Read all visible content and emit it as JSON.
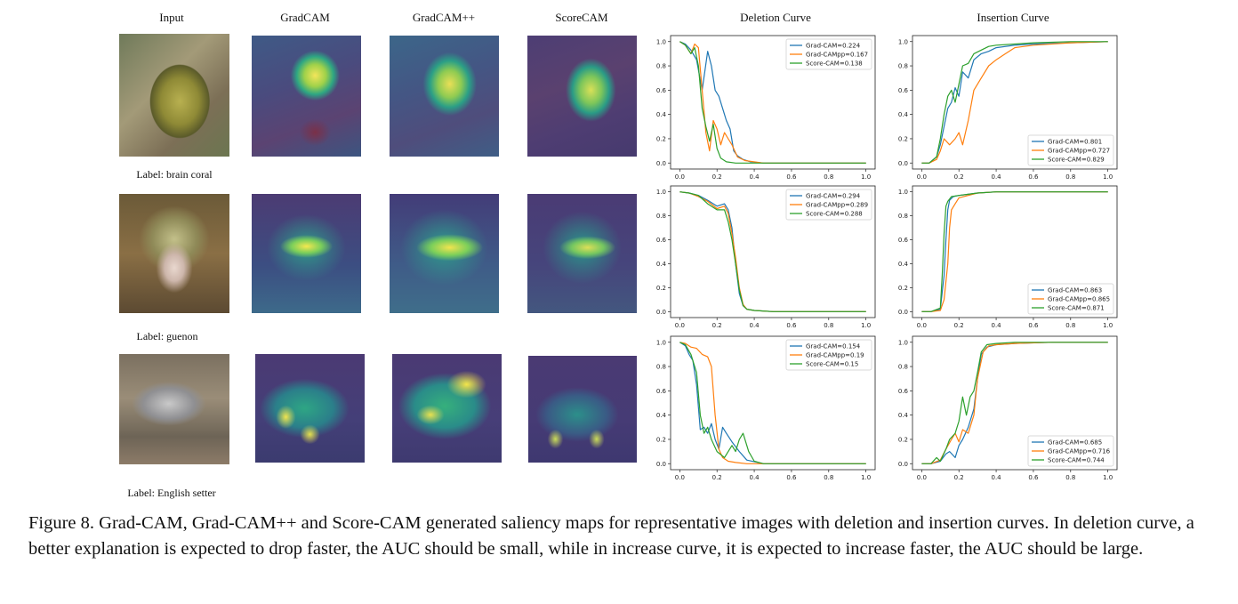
{
  "headers": {
    "input": "Input",
    "gradcam": "GradCAM",
    "gradcampp": "GradCAM++",
    "scorecam": "ScoreCAM",
    "deletion": "Deletion Curve",
    "insertion": "Insertion Curve"
  },
  "labels": [
    "Label: brain coral",
    "Label: guenon",
    "Label: English setter"
  ],
  "caption": "Figure 8. Grad-CAM, Grad-CAM++ and Score-CAM generated saliency maps for representative images with deletion and insertion curves. In deletion curve, a better explanation is expected to drop faster, the AUC should be small, while in increase curve, it is expected to increase faster, the AUC should be large.",
  "colors": {
    "gradcam": "#1f77b4",
    "gradcampp": "#ff7f0e",
    "scorecam": "#2ca02c"
  },
  "chart_data": [
    {
      "type": "line",
      "title": "Deletion Curve",
      "row": 0,
      "legend": "top-right",
      "xlim": [
        0,
        1
      ],
      "ylim": [
        0,
        1
      ],
      "xticks": [
        "0.0",
        "0.2",
        "0.4",
        "0.6",
        "0.8",
        "1.0"
      ],
      "yticks": [
        "0.0",
        "0.2",
        "0.4",
        "0.6",
        "0.8",
        "1.0"
      ],
      "series": [
        {
          "name": "Grad-CAM=0.224",
          "x": [
            0,
            0.03,
            0.06,
            0.09,
            0.12,
            0.15,
            0.17,
            0.19,
            0.21,
            0.23,
            0.25,
            0.27,
            0.29,
            0.31,
            0.34,
            0.38,
            0.45,
            0.6,
            1.0
          ],
          "y": [
            1.0,
            0.98,
            0.93,
            0.85,
            0.6,
            0.92,
            0.8,
            0.6,
            0.55,
            0.45,
            0.35,
            0.28,
            0.1,
            0.06,
            0.03,
            0.01,
            0.0,
            0.0,
            0.0
          ]
        },
        {
          "name": "Grad-CAMpp=0.167",
          "x": [
            0,
            0.03,
            0.06,
            0.08,
            0.1,
            0.12,
            0.14,
            0.16,
            0.18,
            0.2,
            0.22,
            0.24,
            0.26,
            0.28,
            0.31,
            0.35,
            0.45,
            1.0
          ],
          "y": [
            1.0,
            0.97,
            0.9,
            0.98,
            0.95,
            0.6,
            0.25,
            0.1,
            0.35,
            0.28,
            0.15,
            0.25,
            0.2,
            0.15,
            0.05,
            0.02,
            0.0,
            0.0
          ]
        },
        {
          "name": "Score-CAM=0.138",
          "x": [
            0,
            0.03,
            0.06,
            0.08,
            0.1,
            0.12,
            0.14,
            0.16,
            0.18,
            0.2,
            0.22,
            0.25,
            0.3,
            0.4,
            1.0
          ],
          "y": [
            1.0,
            0.97,
            0.9,
            0.95,
            0.8,
            0.45,
            0.3,
            0.18,
            0.32,
            0.12,
            0.04,
            0.01,
            0.0,
            0.0,
            0.0
          ]
        }
      ]
    },
    {
      "type": "line",
      "title": "Insertion Curve",
      "row": 0,
      "legend": "bottom-right",
      "xlim": [
        0,
        1
      ],
      "ylim": [
        0,
        1
      ],
      "xticks": [
        "0.0",
        "0.2",
        "0.4",
        "0.6",
        "0.8",
        "1.0"
      ],
      "yticks": [
        "0.0",
        "0.2",
        "0.4",
        "0.6",
        "0.8",
        "1.0"
      ],
      "series": [
        {
          "name": "Grad-CAM=0.801",
          "x": [
            0,
            0.04,
            0.08,
            0.1,
            0.12,
            0.14,
            0.16,
            0.18,
            0.2,
            0.22,
            0.25,
            0.28,
            0.32,
            0.36,
            0.4,
            0.5,
            0.6,
            0.8,
            1.0
          ],
          "y": [
            0.0,
            0.0,
            0.05,
            0.15,
            0.3,
            0.45,
            0.5,
            0.62,
            0.55,
            0.75,
            0.7,
            0.85,
            0.9,
            0.92,
            0.95,
            0.97,
            0.98,
            0.99,
            1.0
          ]
        },
        {
          "name": "Grad-CAMpp=0.727",
          "x": [
            0,
            0.04,
            0.08,
            0.1,
            0.12,
            0.15,
            0.18,
            0.2,
            0.22,
            0.25,
            0.28,
            0.32,
            0.36,
            0.4,
            0.45,
            0.5,
            0.6,
            0.8,
            1.0
          ],
          "y": [
            0.0,
            0.0,
            0.03,
            0.1,
            0.2,
            0.15,
            0.2,
            0.25,
            0.15,
            0.35,
            0.6,
            0.7,
            0.8,
            0.85,
            0.9,
            0.95,
            0.97,
            0.99,
            1.0
          ]
        },
        {
          "name": "Score-CAM=0.829",
          "x": [
            0,
            0.04,
            0.08,
            0.1,
            0.12,
            0.14,
            0.16,
            0.18,
            0.2,
            0.22,
            0.25,
            0.28,
            0.32,
            0.36,
            0.4,
            0.5,
            0.6,
            0.8,
            1.0
          ],
          "y": [
            0.0,
            0.0,
            0.05,
            0.2,
            0.4,
            0.55,
            0.6,
            0.5,
            0.65,
            0.8,
            0.82,
            0.9,
            0.93,
            0.96,
            0.97,
            0.98,
            0.99,
            1.0,
            1.0
          ]
        }
      ]
    },
    {
      "type": "line",
      "title": "Deletion Curve",
      "row": 1,
      "legend": "top-right",
      "xlim": [
        0,
        1
      ],
      "ylim": [
        0,
        1
      ],
      "xticks": [
        "0.0",
        "0.2",
        "0.4",
        "0.6",
        "0.8",
        "1.0"
      ],
      "yticks": [
        "0.0",
        "0.2",
        "0.4",
        "0.6",
        "0.8",
        "1.0"
      ],
      "series": [
        {
          "name": "Grad-CAM=0.294",
          "x": [
            0,
            0.05,
            0.1,
            0.15,
            0.2,
            0.24,
            0.26,
            0.28,
            0.3,
            0.32,
            0.34,
            0.36,
            0.4,
            0.5,
            1.0
          ],
          "y": [
            1.0,
            0.99,
            0.97,
            0.93,
            0.88,
            0.9,
            0.85,
            0.7,
            0.4,
            0.15,
            0.05,
            0.02,
            0.01,
            0.0,
            0.0
          ]
        },
        {
          "name": "Grad-CAMpp=0.289",
          "x": [
            0,
            0.05,
            0.1,
            0.15,
            0.2,
            0.24,
            0.26,
            0.28,
            0.3,
            0.32,
            0.34,
            0.36,
            0.4,
            0.5,
            1.0
          ],
          "y": [
            1.0,
            0.99,
            0.96,
            0.92,
            0.86,
            0.88,
            0.82,
            0.65,
            0.45,
            0.2,
            0.06,
            0.02,
            0.01,
            0.0,
            0.0
          ]
        },
        {
          "name": "Score-CAM=0.288",
          "x": [
            0,
            0.05,
            0.1,
            0.15,
            0.2,
            0.24,
            0.26,
            0.28,
            0.3,
            0.32,
            0.34,
            0.36,
            0.4,
            0.5,
            1.0
          ],
          "y": [
            1.0,
            0.99,
            0.97,
            0.9,
            0.85,
            0.85,
            0.75,
            0.6,
            0.4,
            0.18,
            0.05,
            0.02,
            0.01,
            0.0,
            0.0
          ]
        }
      ]
    },
    {
      "type": "line",
      "title": "Insertion Curve",
      "row": 1,
      "legend": "bottom-right",
      "xlim": [
        0,
        1
      ],
      "ylim": [
        0,
        1
      ],
      "xticks": [
        "0.0",
        "0.2",
        "0.4",
        "0.6",
        "0.8",
        "1.0"
      ],
      "yticks": [
        "0.0",
        "0.2",
        "0.4",
        "0.6",
        "0.8",
        "1.0"
      ],
      "series": [
        {
          "name": "Grad-CAM=0.863",
          "x": [
            0,
            0.05,
            0.1,
            0.12,
            0.13,
            0.14,
            0.15,
            0.17,
            0.2,
            0.25,
            0.3,
            0.4,
            0.6,
            1.0
          ],
          "y": [
            0.0,
            0.0,
            0.02,
            0.3,
            0.6,
            0.85,
            0.93,
            0.96,
            0.97,
            0.98,
            0.99,
            1.0,
            1.0,
            1.0
          ]
        },
        {
          "name": "Grad-CAMpp=0.865",
          "x": [
            0,
            0.05,
            0.1,
            0.12,
            0.14,
            0.15,
            0.16,
            0.18,
            0.2,
            0.25,
            0.3,
            0.4,
            0.6,
            1.0
          ],
          "y": [
            0.0,
            0.0,
            0.01,
            0.1,
            0.4,
            0.7,
            0.85,
            0.9,
            0.95,
            0.97,
            0.99,
            1.0,
            1.0,
            1.0
          ]
        },
        {
          "name": "Score-CAM=0.871",
          "x": [
            0,
            0.05,
            0.1,
            0.11,
            0.12,
            0.13,
            0.14,
            0.16,
            0.2,
            0.25,
            0.3,
            0.4,
            0.6,
            1.0
          ],
          "y": [
            0.0,
            0.0,
            0.03,
            0.3,
            0.65,
            0.88,
            0.92,
            0.96,
            0.97,
            0.98,
            0.99,
            1.0,
            1.0,
            1.0
          ]
        }
      ]
    },
    {
      "type": "line",
      "title": "Deletion Curve",
      "row": 2,
      "legend": "top-right",
      "xlim": [
        0,
        1
      ],
      "ylim": [
        0,
        1
      ],
      "xticks": [
        "0.0",
        "0.2",
        "0.4",
        "0.6",
        "0.8",
        "1.0"
      ],
      "yticks": [
        "0.0",
        "0.2",
        "0.4",
        "0.6",
        "0.8",
        "1.0"
      ],
      "series": [
        {
          "name": "Grad-CAM=0.154",
          "x": [
            0,
            0.03,
            0.05,
            0.07,
            0.09,
            0.11,
            0.13,
            0.15,
            0.17,
            0.19,
            0.21,
            0.23,
            0.25,
            0.28,
            0.32,
            0.36,
            0.45,
            1.0
          ],
          "y": [
            1.0,
            0.97,
            0.9,
            0.85,
            0.65,
            0.28,
            0.3,
            0.25,
            0.33,
            0.2,
            0.12,
            0.3,
            0.25,
            0.18,
            0.1,
            0.03,
            0.0,
            0.0
          ]
        },
        {
          "name": "Grad-CAMpp=0.19",
          "x": [
            0,
            0.03,
            0.06,
            0.09,
            0.12,
            0.15,
            0.17,
            0.19,
            0.21,
            0.23,
            0.26,
            0.3,
            0.36,
            0.45,
            1.0
          ],
          "y": [
            1.0,
            0.99,
            0.96,
            0.95,
            0.9,
            0.88,
            0.8,
            0.4,
            0.12,
            0.05,
            0.02,
            0.01,
            0.0,
            0.0,
            0.0
          ]
        },
        {
          "name": "Score-CAM=0.15",
          "x": [
            0,
            0.03,
            0.06,
            0.09,
            0.11,
            0.13,
            0.15,
            0.17,
            0.2,
            0.24,
            0.28,
            0.3,
            0.32,
            0.34,
            0.37,
            0.4,
            0.45,
            1.0
          ],
          "y": [
            1.0,
            0.98,
            0.9,
            0.75,
            0.4,
            0.25,
            0.3,
            0.2,
            0.1,
            0.05,
            0.15,
            0.1,
            0.2,
            0.25,
            0.1,
            0.02,
            0.0,
            0.0
          ]
        }
      ]
    },
    {
      "type": "line",
      "title": "Insertion Curve",
      "row": 2,
      "legend": "bottom-right",
      "xlim": [
        0,
        1
      ],
      "ylim": [
        0,
        1
      ],
      "xticks": [
        "0.0",
        "0.2",
        "0.4",
        "0.6",
        "0.8",
        "1.0"
      ],
      "yticks": [
        "0.0",
        "0.2",
        "0.4",
        "0.6",
        "0.8",
        "1.0"
      ],
      "series": [
        {
          "name": "Grad-CAM=0.685",
          "x": [
            0,
            0.05,
            0.1,
            0.13,
            0.15,
            0.18,
            0.2,
            0.22,
            0.25,
            0.28,
            0.3,
            0.32,
            0.35,
            0.4,
            0.5,
            0.7,
            1.0
          ],
          "y": [
            0.0,
            0.0,
            0.02,
            0.08,
            0.1,
            0.05,
            0.15,
            0.2,
            0.3,
            0.45,
            0.7,
            0.9,
            0.96,
            0.98,
            0.99,
            1.0,
            1.0
          ]
        },
        {
          "name": "Grad-CAMpp=0.716",
          "x": [
            0,
            0.05,
            0.1,
            0.13,
            0.16,
            0.18,
            0.2,
            0.22,
            0.25,
            0.28,
            0.3,
            0.33,
            0.36,
            0.4,
            0.5,
            0.7,
            1.0
          ],
          "y": [
            0.0,
            0.0,
            0.03,
            0.12,
            0.2,
            0.25,
            0.18,
            0.28,
            0.25,
            0.4,
            0.7,
            0.92,
            0.97,
            0.98,
            0.99,
            1.0,
            1.0
          ]
        },
        {
          "name": "Score-CAM=0.744",
          "x": [
            0,
            0.05,
            0.08,
            0.1,
            0.13,
            0.15,
            0.18,
            0.2,
            0.22,
            0.24,
            0.26,
            0.28,
            0.3,
            0.32,
            0.35,
            0.4,
            0.5,
            0.7,
            1.0
          ],
          "y": [
            0.0,
            0.0,
            0.05,
            0.02,
            0.12,
            0.2,
            0.25,
            0.35,
            0.55,
            0.4,
            0.55,
            0.6,
            0.75,
            0.92,
            0.98,
            0.99,
            1.0,
            1.0,
            1.0
          ]
        }
      ]
    }
  ]
}
